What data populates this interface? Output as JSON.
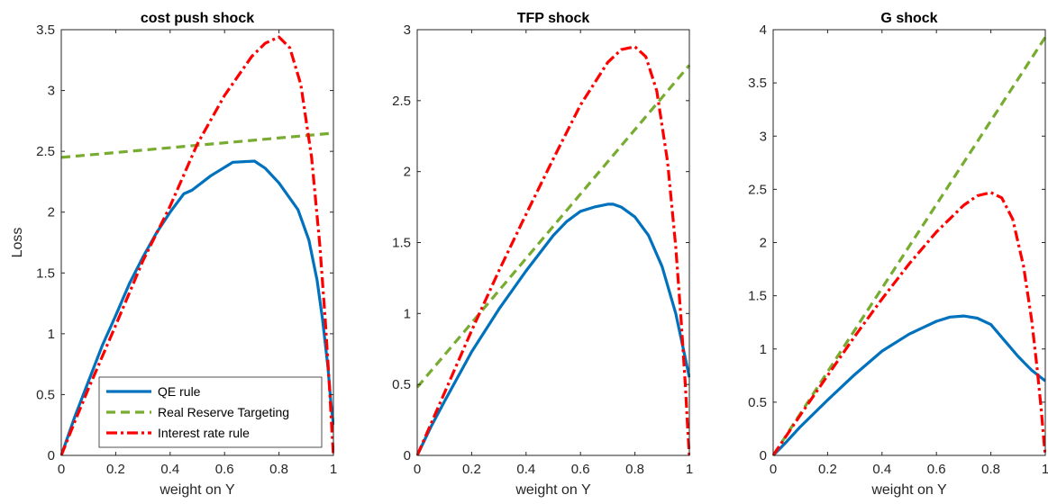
{
  "colors": {
    "qe": "#0072BD",
    "reserve": "#77AC30",
    "interest": "#FF0000",
    "axis": "#262626"
  },
  "chart_data": [
    {
      "type": "line",
      "title": "cost push shock",
      "xlabel": "weight on Y",
      "ylabel": "Loss",
      "xlim": [
        0,
        1
      ],
      "ylim": [
        0,
        3.5
      ],
      "xticks": [
        "0",
        "0.2",
        "0.4",
        "0.6",
        "0.8",
        "1"
      ],
      "yticks": [
        "0",
        "0.5",
        "1",
        "1.5",
        "2",
        "2.5",
        "3",
        "3.5"
      ],
      "legend": {
        "location": "bottom-left",
        "entries": [
          "QE rule",
          "Real Reserve Targeting",
          "Interest rate rule"
        ]
      },
      "series": [
        {
          "name": "QE rule",
          "style": "solid",
          "color": "#0072BD",
          "x": [
            0,
            0.05,
            0.1,
            0.15,
            0.2,
            0.25,
            0.3,
            0.35,
            0.4,
            0.45,
            0.48,
            0.55,
            0.63,
            0.71,
            0.75,
            0.8,
            0.87,
            0.91,
            0.94,
            0.96,
            0.98,
            0.99,
            1.0
          ],
          "y": [
            0,
            0.32,
            0.61,
            0.9,
            1.15,
            1.41,
            1.63,
            1.83,
            2.0,
            2.15,
            2.18,
            2.3,
            2.41,
            2.42,
            2.36,
            2.24,
            2.02,
            1.77,
            1.44,
            1.12,
            0.72,
            0.45,
            0.25
          ]
        },
        {
          "name": "Real Reserve Targeting",
          "style": "dashed",
          "color": "#77AC30",
          "x": [
            0,
            1
          ],
          "y": [
            2.45,
            2.65
          ]
        },
        {
          "name": "Interest rate rule",
          "style": "dashdot",
          "color": "#FF0000",
          "x": [
            0,
            0.05,
            0.1,
            0.2,
            0.3,
            0.4,
            0.5,
            0.6,
            0.7,
            0.75,
            0.8,
            0.84,
            0.88,
            0.92,
            0.95,
            0.97,
            0.985,
            0.995,
            1.0
          ],
          "y": [
            0,
            0.28,
            0.55,
            1.07,
            1.6,
            2.05,
            2.56,
            2.96,
            3.28,
            3.39,
            3.44,
            3.35,
            3.05,
            2.45,
            1.73,
            1.12,
            0.58,
            0.18,
            0
          ]
        }
      ]
    },
    {
      "type": "line",
      "title": "TFP shock",
      "xlabel": "weight on Y",
      "xlim": [
        0,
        1
      ],
      "ylim": [
        0,
        3
      ],
      "xticks": [
        "0",
        "0.2",
        "0.4",
        "0.6",
        "0.8",
        "1"
      ],
      "yticks": [
        "0",
        "0.5",
        "1",
        "1.5",
        "2",
        "2.5",
        "3"
      ],
      "series": [
        {
          "name": "QE rule",
          "style": "solid",
          "color": "#0072BD",
          "x": [
            0,
            0.05,
            0.1,
            0.2,
            0.3,
            0.4,
            0.5,
            0.55,
            0.6,
            0.65,
            0.7,
            0.72,
            0.75,
            0.8,
            0.85,
            0.9,
            0.95,
            0.98,
            1.0
          ],
          "y": [
            0,
            0.2,
            0.38,
            0.73,
            1.03,
            1.3,
            1.55,
            1.65,
            1.72,
            1.75,
            1.77,
            1.77,
            1.75,
            1.68,
            1.55,
            1.33,
            1.0,
            0.73,
            0.55
          ]
        },
        {
          "name": "Real Reserve Targeting",
          "style": "dashed",
          "color": "#77AC30",
          "x": [
            0,
            1
          ],
          "y": [
            0.48,
            2.75
          ]
        },
        {
          "name": "Interest rate rule",
          "style": "dashdot",
          "color": "#FF0000",
          "x": [
            0,
            0.05,
            0.1,
            0.2,
            0.3,
            0.4,
            0.5,
            0.6,
            0.7,
            0.75,
            0.8,
            0.84,
            0.88,
            0.92,
            0.95,
            0.97,
            0.985,
            0.995,
            1.0
          ],
          "y": [
            0,
            0.22,
            0.44,
            0.88,
            1.3,
            1.7,
            2.09,
            2.47,
            2.77,
            2.86,
            2.88,
            2.81,
            2.57,
            2.07,
            1.47,
            0.95,
            0.5,
            0.15,
            0
          ]
        }
      ]
    },
    {
      "type": "line",
      "title": "G shock",
      "xlabel": "weight on Y",
      "xlim": [
        0,
        1
      ],
      "ylim": [
        0,
        4
      ],
      "xticks": [
        "0",
        "0.2",
        "0.4",
        "0.6",
        "0.8",
        "1"
      ],
      "yticks": [
        "0",
        "0.5",
        "1",
        "1.5",
        "2",
        "2.5",
        "3",
        "3.5",
        "4"
      ],
      "series": [
        {
          "name": "QE rule",
          "style": "solid",
          "color": "#0072BD",
          "x": [
            0,
            0.05,
            0.1,
            0.2,
            0.3,
            0.4,
            0.5,
            0.55,
            0.6,
            0.65,
            0.7,
            0.75,
            0.8,
            0.85,
            0.9,
            0.95,
            1.0
          ],
          "y": [
            0,
            0.13,
            0.27,
            0.52,
            0.76,
            0.98,
            1.14,
            1.2,
            1.26,
            1.3,
            1.31,
            1.29,
            1.23,
            1.08,
            0.93,
            0.8,
            0.7
          ]
        },
        {
          "name": "Real Reserve Targeting",
          "style": "dashed",
          "color": "#77AC30",
          "x": [
            0,
            1
          ],
          "y": [
            0,
            3.93
          ]
        },
        {
          "name": "Interest rate rule",
          "style": "dashdot",
          "color": "#FF0000",
          "x": [
            0,
            0.05,
            0.1,
            0.2,
            0.3,
            0.4,
            0.5,
            0.6,
            0.7,
            0.75,
            0.8,
            0.84,
            0.88,
            0.92,
            0.95,
            0.97,
            0.985,
            0.995,
            1.0
          ],
          "y": [
            0,
            0.19,
            0.38,
            0.75,
            1.12,
            1.47,
            1.8,
            2.1,
            2.35,
            2.44,
            2.47,
            2.42,
            2.22,
            1.78,
            1.27,
            0.82,
            0.43,
            0.13,
            0
          ]
        }
      ]
    }
  ]
}
